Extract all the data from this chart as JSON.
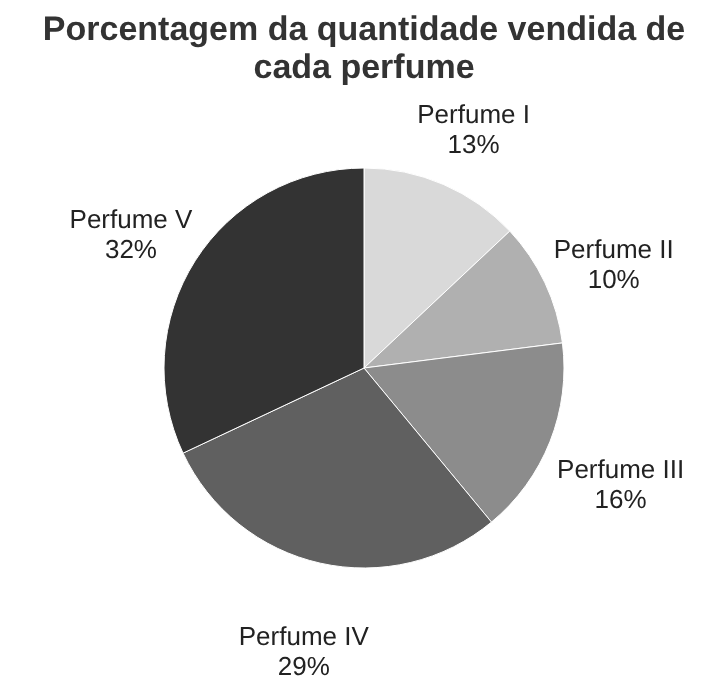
{
  "chart_data": {
    "type": "pie",
    "title": "Porcentagem da quantidade vendida de\ncada perfume",
    "categories": [
      "Perfume I",
      "Perfume II",
      "Perfume III",
      "Perfume IV",
      "Perfume V"
    ],
    "values": [
      13,
      10,
      16,
      29,
      32
    ],
    "value_labels": [
      "13%",
      "10%",
      "16%",
      "29%",
      "32%"
    ],
    "colors": [
      "#d9d9d9",
      "#b0b0b0",
      "#8c8c8c",
      "#606060",
      "#333333"
    ],
    "legend": false
  }
}
